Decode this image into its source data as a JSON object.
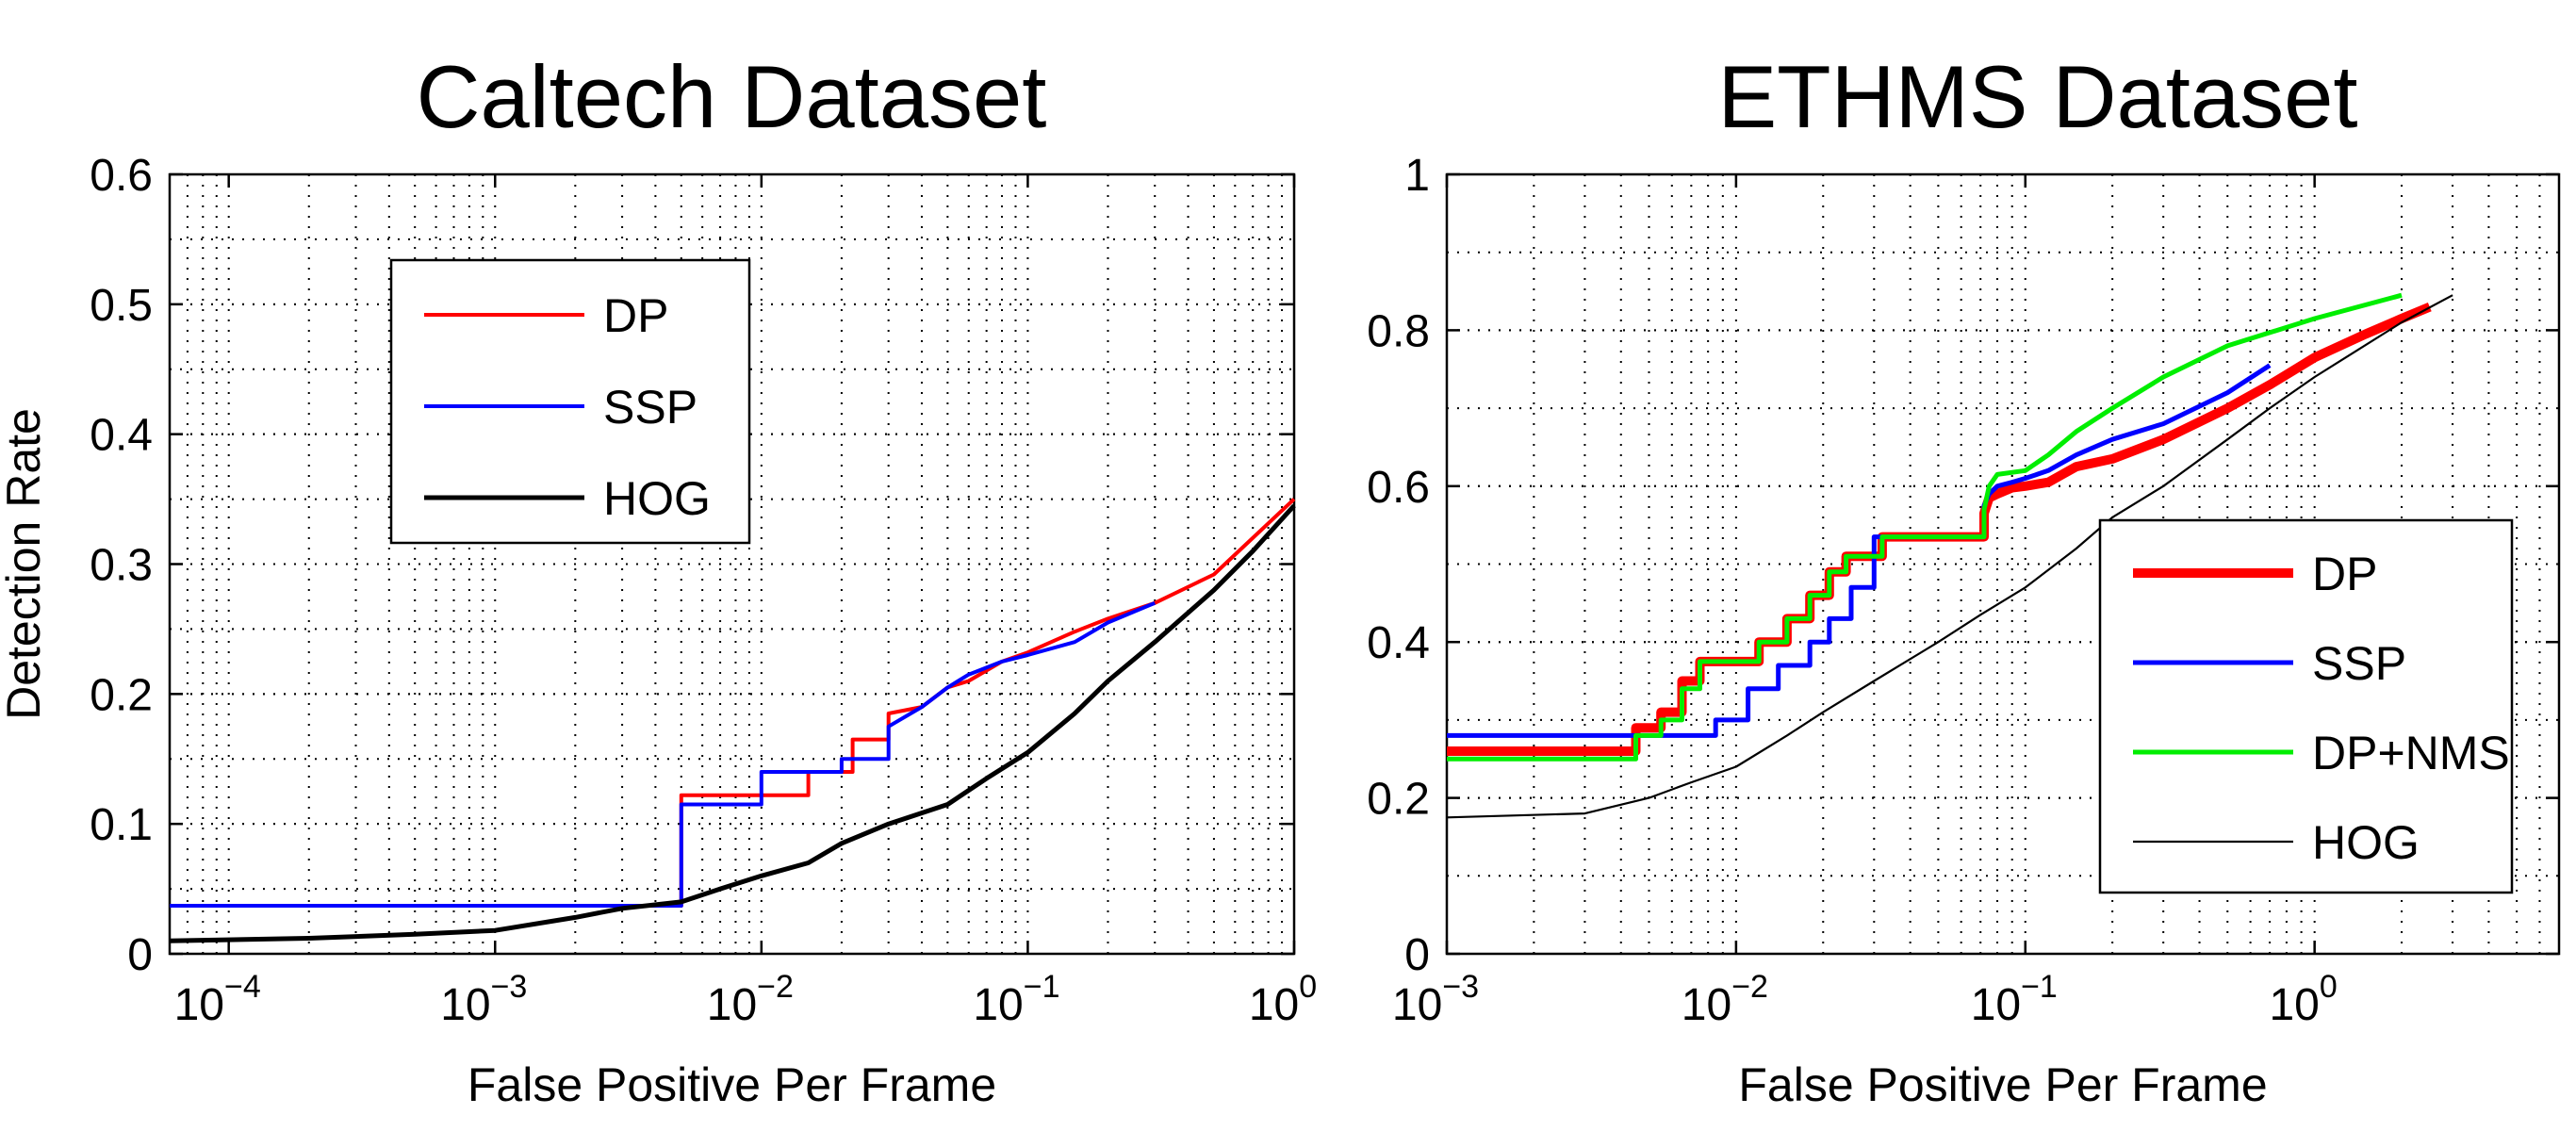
{
  "chart_data": [
    {
      "type": "line",
      "title": "Caltech Dataset",
      "xlabel": "False Positive Per Frame",
      "ylabel": "Detection Rate",
      "x_scale": "log",
      "xlim": [
        6e-05,
        1
      ],
      "ylim": [
        0,
        0.6
      ],
      "x_ticks": [
        0.0001,
        0.001,
        0.01,
        0.1,
        1
      ],
      "x_tick_labels": [
        {
          "base": "10",
          "exp": "−4"
        },
        {
          "base": "10",
          "exp": "−3"
        },
        {
          "base": "10",
          "exp": "−2"
        },
        {
          "base": "10",
          "exp": "−1"
        },
        {
          "base": "10",
          "exp": "0"
        }
      ],
      "y_ticks": [
        0,
        0.1,
        0.2,
        0.3,
        0.4,
        0.5,
        0.6
      ],
      "y_tick_labels": [
        "0",
        "0.1",
        "0.2",
        "0.3",
        "0.4",
        "0.5",
        "0.6"
      ],
      "grid": true,
      "legend_position": "top-left",
      "series": [
        {
          "name": "DP",
          "color": "#ff0000",
          "width": 4,
          "step": true,
          "x": [
            6e-05,
            0.005,
            0.005,
            0.015,
            0.015,
            0.022,
            0.022,
            0.03,
            0.03,
            0.04,
            0.05,
            0.06,
            0.08,
            0.1,
            0.15,
            0.2,
            0.3,
            0.5,
            1.0
          ],
          "y": [
            0.037,
            0.037,
            0.122,
            0.122,
            0.14,
            0.14,
            0.165,
            0.165,
            0.185,
            0.19,
            0.205,
            0.21,
            0.225,
            0.232,
            0.248,
            0.258,
            0.27,
            0.292,
            0.35
          ]
        },
        {
          "name": "SSP",
          "color": "#0000ff",
          "width": 4,
          "step": true,
          "x": [
            6e-05,
            0.005,
            0.005,
            0.01,
            0.01,
            0.02,
            0.02,
            0.03,
            0.03,
            0.04,
            0.05,
            0.06,
            0.08,
            0.1,
            0.15,
            0.2,
            0.3
          ],
          "y": [
            0.037,
            0.037,
            0.115,
            0.115,
            0.14,
            0.14,
            0.15,
            0.15,
            0.175,
            0.19,
            0.205,
            0.215,
            0.225,
            0.23,
            0.24,
            0.255,
            0.27
          ]
        },
        {
          "name": "HOG",
          "color": "#000000",
          "width": 5,
          "step": false,
          "x": [
            6e-05,
            0.0002,
            0.0005,
            0.001,
            0.002,
            0.003,
            0.005,
            0.007,
            0.01,
            0.015,
            0.02,
            0.03,
            0.05,
            0.07,
            0.1,
            0.15,
            0.2,
            0.3,
            0.5,
            0.7,
            1.0
          ],
          "y": [
            0.01,
            0.012,
            0.015,
            0.018,
            0.028,
            0.035,
            0.04,
            0.05,
            0.06,
            0.07,
            0.085,
            0.1,
            0.115,
            0.135,
            0.155,
            0.185,
            0.21,
            0.24,
            0.28,
            0.31,
            0.345
          ]
        }
      ]
    },
    {
      "type": "line",
      "title": "ETHMS Dataset",
      "xlabel": "False Positive Per Frame",
      "ylabel": "",
      "x_scale": "log",
      "xlim": [
        0.001,
        7
      ],
      "ylim": [
        0,
        1
      ],
      "x_ticks": [
        0.001,
        0.01,
        0.1,
        1
      ],
      "x_tick_labels": [
        {
          "base": "10",
          "exp": "−3"
        },
        {
          "base": "10",
          "exp": "−2"
        },
        {
          "base": "10",
          "exp": "−1"
        },
        {
          "base": "10",
          "exp": "0"
        }
      ],
      "y_ticks": [
        0,
        0.2,
        0.4,
        0.6,
        0.8,
        1
      ],
      "y_tick_labels": [
        "0",
        "0.2",
        "0.4",
        "0.6",
        "0.8",
        "1"
      ],
      "grid": true,
      "legend_position": "bottom-right",
      "series": [
        {
          "name": "DP",
          "color": "#ff0000",
          "width": 10,
          "step": true,
          "x": [
            0.001,
            0.0045,
            0.0045,
            0.0055,
            0.0055,
            0.0065,
            0.0065,
            0.0075,
            0.0075,
            0.012,
            0.012,
            0.015,
            0.015,
            0.018,
            0.018,
            0.021,
            0.021,
            0.024,
            0.024,
            0.032,
            0.032,
            0.072,
            0.072,
            0.075,
            0.08,
            0.09,
            0.1,
            0.12,
            0.15,
            0.2,
            0.3,
            0.5,
            0.7,
            1.0,
            1.5,
            2.0,
            2.5
          ],
          "y": [
            0.26,
            0.26,
            0.29,
            0.29,
            0.31,
            0.31,
            0.35,
            0.35,
            0.375,
            0.375,
            0.4,
            0.4,
            0.43,
            0.43,
            0.46,
            0.46,
            0.49,
            0.49,
            0.51,
            0.51,
            0.535,
            0.535,
            0.565,
            0.585,
            0.59,
            0.598,
            0.6,
            0.605,
            0.625,
            0.635,
            0.66,
            0.7,
            0.73,
            0.765,
            0.795,
            0.815,
            0.83
          ]
        },
        {
          "name": "SSP",
          "color": "#0000ff",
          "width": 5,
          "step": true,
          "x": [
            0.001,
            0.0085,
            0.0085,
            0.011,
            0.011,
            0.014,
            0.014,
            0.018,
            0.018,
            0.021,
            0.021,
            0.025,
            0.025,
            0.03,
            0.03,
            0.072,
            0.072,
            0.075,
            0.08,
            0.09,
            0.1,
            0.12,
            0.15,
            0.2,
            0.3,
            0.5,
            0.7
          ],
          "y": [
            0.28,
            0.28,
            0.3,
            0.3,
            0.34,
            0.34,
            0.37,
            0.37,
            0.4,
            0.4,
            0.43,
            0.43,
            0.47,
            0.47,
            0.535,
            0.535,
            0.575,
            0.59,
            0.6,
            0.605,
            0.61,
            0.62,
            0.64,
            0.66,
            0.68,
            0.72,
            0.755
          ]
        },
        {
          "name": "DP+NMS",
          "color": "#00ee00",
          "width": 5,
          "step": true,
          "x": [
            0.001,
            0.0045,
            0.0045,
            0.0055,
            0.0055,
            0.0065,
            0.0065,
            0.0075,
            0.0075,
            0.012,
            0.012,
            0.015,
            0.015,
            0.018,
            0.018,
            0.021,
            0.021,
            0.024,
            0.024,
            0.032,
            0.032,
            0.072,
            0.072,
            0.075,
            0.08,
            0.1,
            0.12,
            0.15,
            0.2,
            0.3,
            0.5,
            1.0,
            2.0
          ],
          "y": [
            0.25,
            0.25,
            0.28,
            0.28,
            0.3,
            0.3,
            0.34,
            0.34,
            0.375,
            0.375,
            0.4,
            0.4,
            0.43,
            0.43,
            0.46,
            0.46,
            0.49,
            0.49,
            0.51,
            0.51,
            0.535,
            0.535,
            0.57,
            0.6,
            0.615,
            0.62,
            0.64,
            0.67,
            0.7,
            0.74,
            0.78,
            0.815,
            0.845
          ]
        },
        {
          "name": "HOG",
          "color": "#000000",
          "width": 2.2,
          "step": false,
          "x": [
            0.001,
            0.003,
            0.005,
            0.007,
            0.01,
            0.015,
            0.02,
            0.03,
            0.05,
            0.07,
            0.1,
            0.15,
            0.2,
            0.3,
            0.5,
            0.7,
            1.0,
            2.0,
            3.0
          ],
          "y": [
            0.175,
            0.18,
            0.2,
            0.22,
            0.24,
            0.28,
            0.31,
            0.35,
            0.4,
            0.435,
            0.47,
            0.52,
            0.56,
            0.6,
            0.66,
            0.7,
            0.74,
            0.81,
            0.845
          ]
        }
      ]
    }
  ]
}
